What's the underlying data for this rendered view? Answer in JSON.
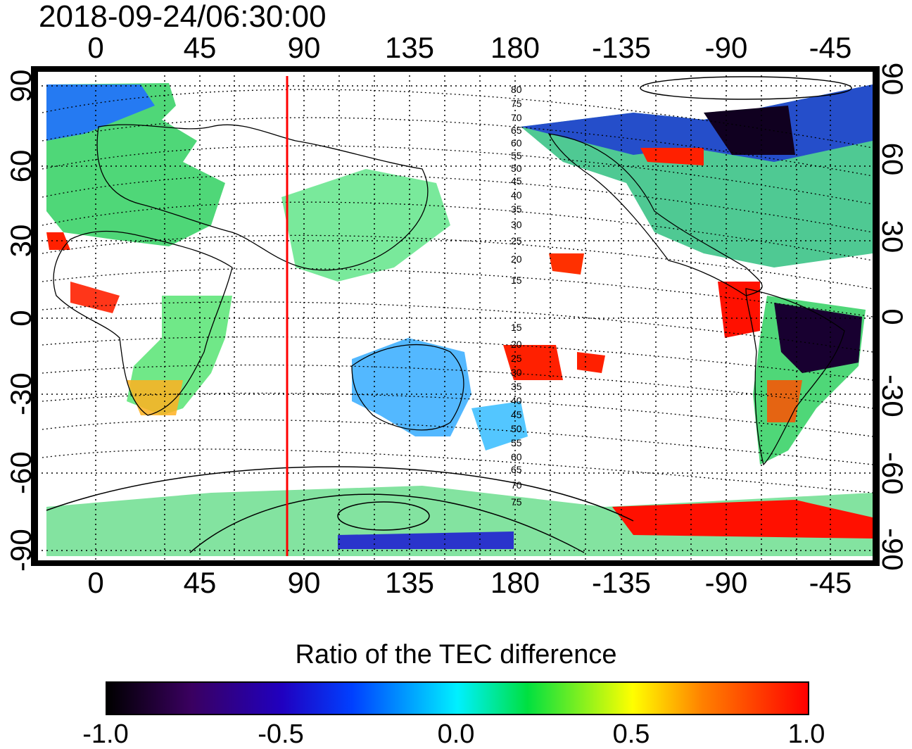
{
  "timestamp": "2018-09-24/06:30:00",
  "axes": {
    "lon_labels": [
      "0",
      "45",
      "90",
      "135",
      "180",
      "-135",
      "-90",
      "-45"
    ],
    "lat_labels": [
      "90",
      "60",
      "30",
      "0",
      "-30",
      "-60",
      "-90"
    ],
    "lon_range": [
      -20,
      340
    ],
    "lat_range": [
      -92,
      90
    ]
  },
  "map": {
    "grid": true,
    "coastlines": true,
    "highlight_meridian_lon": 82,
    "highlight_color": "#ff0000",
    "magnetic_latitude_labels": [
      "80",
      "75",
      "70",
      "65",
      "60",
      "55",
      "50",
      "45",
      "40",
      "35",
      "30",
      "25",
      "20",
      "15",
      "15",
      "20",
      "25",
      "30",
      "35",
      "40",
      "45",
      "50",
      "55",
      "60",
      "65",
      "70",
      "75"
    ]
  },
  "colorbar": {
    "title": "Ratio of the TEC difference",
    "min": -1.0,
    "max": 1.0,
    "ticks": [
      "-1.0",
      "-0.5",
      "0.0",
      "0.5",
      "1.0"
    ],
    "colors": [
      "#000000",
      "#2000c0",
      "#0040ff",
      "#00f0ff",
      "#00e040",
      "#ffff00",
      "#ff8000",
      "#ff0000"
    ]
  }
}
